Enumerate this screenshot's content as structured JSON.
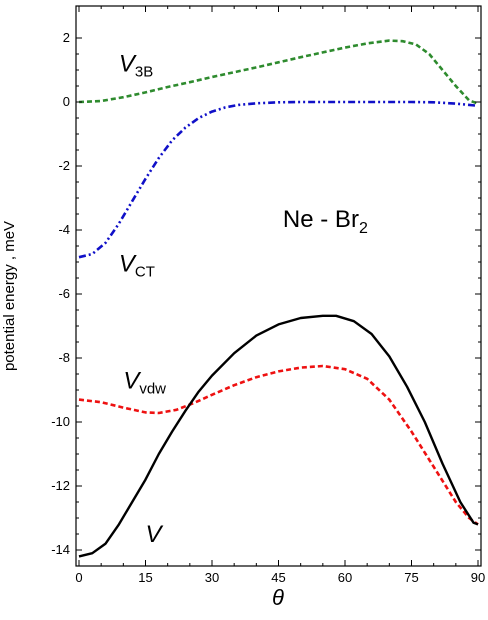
{
  "chart_data": {
    "type": "line",
    "title": "Ne - Br",
    "title_subscript": "2",
    "xlabel": "θ",
    "ylabel": "potential energy  ,  meV",
    "xlim": [
      0,
      90
    ],
    "ylim": [
      -14.5,
      3.0
    ],
    "xticks": [
      0,
      15,
      30,
      45,
      60,
      75,
      90
    ],
    "yticks": [
      2,
      0,
      -2,
      -4,
      -6,
      -8,
      -10,
      -12,
      -14
    ],
    "grid": false,
    "legend": "inline labels",
    "series": [
      {
        "name": "V",
        "subscript": "3B",
        "color": "#2e8b2e",
        "style": "dashed",
        "x": [
          0,
          5,
          10,
          15,
          20,
          25,
          30,
          35,
          40,
          45,
          50,
          55,
          60,
          65,
          70,
          73,
          76,
          79,
          82,
          85,
          88,
          90
        ],
        "y": [
          0.0,
          0.03,
          0.15,
          0.3,
          0.47,
          0.62,
          0.78,
          0.93,
          1.08,
          1.24,
          1.4,
          1.55,
          1.7,
          1.83,
          1.92,
          1.9,
          1.8,
          1.5,
          1.0,
          0.5,
          0.05,
          -0.05
        ]
      },
      {
        "name": "V",
        "subscript": "CT",
        "color": "#1010c8",
        "style": "dash-dot-dot",
        "x": [
          0,
          3,
          6,
          9,
          12,
          15,
          18,
          21,
          24,
          27,
          30,
          33,
          36,
          40,
          45,
          50,
          55,
          60,
          65,
          70,
          75,
          80,
          85,
          90
        ],
        "y": [
          -4.85,
          -4.75,
          -4.4,
          -3.8,
          -3.1,
          -2.4,
          -1.75,
          -1.2,
          -0.8,
          -0.5,
          -0.3,
          -0.17,
          -0.09,
          -0.04,
          -0.01,
          0.0,
          0.0,
          0.0,
          0.0,
          0.0,
          0.0,
          -0.01,
          -0.05,
          -0.12
        ]
      },
      {
        "name": "V",
        "subscript": "vdw",
        "color": "#ee1111",
        "style": "dashed",
        "x": [
          0,
          5,
          10,
          15,
          18,
          22,
          26,
          30,
          35,
          40,
          45,
          50,
          55,
          60,
          65,
          70,
          75,
          80,
          85,
          88,
          90
        ],
        "y": [
          -9.3,
          -9.38,
          -9.55,
          -9.7,
          -9.72,
          -9.62,
          -9.4,
          -9.15,
          -8.85,
          -8.6,
          -8.42,
          -8.3,
          -8.25,
          -8.35,
          -8.65,
          -9.3,
          -10.3,
          -11.4,
          -12.5,
          -13.0,
          -13.2
        ]
      },
      {
        "name": "V",
        "subscript": "",
        "color": "#000000",
        "style": "solid",
        "x": [
          0,
          3,
          6,
          9,
          12,
          15,
          18,
          21,
          24,
          27,
          30,
          35,
          40,
          45,
          50,
          55,
          58,
          62,
          66,
          70,
          74,
          78,
          82,
          86,
          89,
          90
        ],
        "y": [
          -14.2,
          -14.1,
          -13.8,
          -13.2,
          -12.5,
          -11.8,
          -11.0,
          -10.3,
          -9.65,
          -9.05,
          -8.55,
          -7.85,
          -7.3,
          -6.95,
          -6.75,
          -6.68,
          -6.68,
          -6.85,
          -7.25,
          -7.95,
          -8.9,
          -10.0,
          -11.3,
          -12.5,
          -13.15,
          -13.2
        ]
      }
    ],
    "series_label_positions": [
      {
        "x": 9,
        "y": 0.95
      },
      {
        "x": 9,
        "y": -5.3
      },
      {
        "x": 10,
        "y": -8.95
      },
      {
        "x": 15,
        "y": -13.75
      }
    ],
    "title_position": {
      "x": 46,
      "y": -3.9
    }
  }
}
